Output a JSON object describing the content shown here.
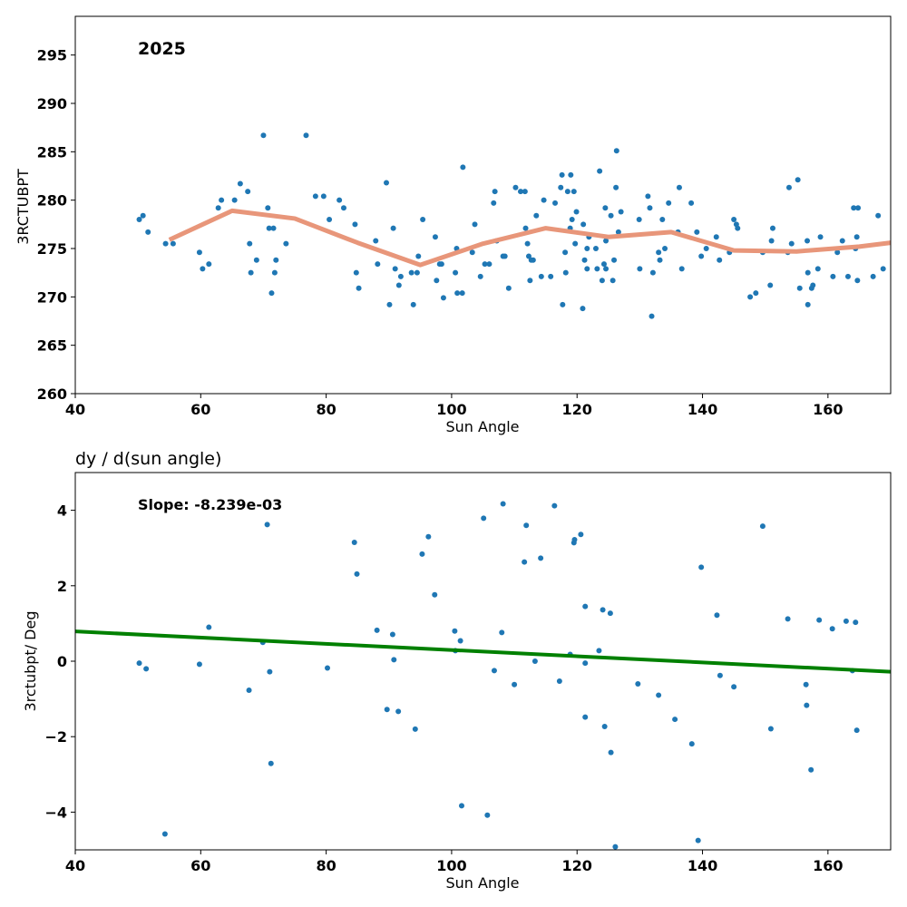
{
  "chart_data": [
    {
      "type": "scatter",
      "annotation": "2025",
      "xlabel": "Sun Angle",
      "ylabel": "3RCTUBPT",
      "xlim": [
        40,
        170
      ],
      "ylim": [
        260,
        299
      ],
      "xticks": [
        40,
        60,
        80,
        100,
        120,
        140,
        160
      ],
      "yticks": [
        260,
        265,
        270,
        275,
        280,
        285,
        290,
        295
      ],
      "grid": false,
      "series": [
        {
          "kind": "scatter",
          "color": "#1f77b4",
          "points": [
            [
              50.2,
              278.0
            ],
            [
              50.8,
              278.4
            ],
            [
              51.6,
              276.7
            ],
            [
              54.4,
              275.5
            ],
            [
              55.6,
              275.5
            ],
            [
              59.8,
              274.6
            ],
            [
              60.3,
              272.9
            ],
            [
              61.3,
              273.4
            ],
            [
              62.8,
              279.2
            ],
            [
              63.3,
              280.0
            ],
            [
              65.4,
              280.0
            ],
            [
              66.3,
              281.7
            ],
            [
              67.5,
              280.9
            ],
            [
              67.8,
              275.5
            ],
            [
              68.0,
              272.5
            ],
            [
              68.9,
              273.8
            ],
            [
              70.0,
              286.7
            ],
            [
              70.7,
              279.2
            ],
            [
              70.9,
              277.1
            ],
            [
              71.3,
              270.4
            ],
            [
              71.6,
              277.1
            ],
            [
              71.8,
              272.5
            ],
            [
              72.0,
              273.8
            ],
            [
              73.6,
              275.5
            ],
            [
              76.8,
              286.7
            ],
            [
              78.3,
              280.4
            ],
            [
              79.6,
              280.4
            ],
            [
              80.5,
              278.0
            ],
            [
              82.1,
              280.0
            ],
            [
              82.8,
              279.2
            ],
            [
              84.6,
              277.5
            ],
            [
              84.8,
              272.5
            ],
            [
              85.2,
              270.9
            ],
            [
              87.9,
              275.8
            ],
            [
              88.2,
              273.4
            ],
            [
              89.6,
              281.8
            ],
            [
              90.1,
              269.2
            ],
            [
              90.7,
              277.1
            ],
            [
              91.0,
              272.9
            ],
            [
              91.6,
              271.2
            ],
            [
              91.9,
              272.1
            ],
            [
              93.6,
              272.5
            ],
            [
              93.9,
              269.2
            ],
            [
              94.5,
              272.5
            ],
            [
              94.7,
              274.2
            ],
            [
              95.4,
              278.0
            ],
            [
              97.4,
              276.2
            ],
            [
              97.6,
              271.7
            ],
            [
              98.1,
              273.4
            ],
            [
              98.4,
              273.4
            ],
            [
              98.7,
              269.9
            ],
            [
              100.6,
              272.5
            ],
            [
              100.9,
              270.4
            ],
            [
              100.8,
              275.0
            ],
            [
              101.7,
              270.4
            ],
            [
              101.8,
              283.4
            ],
            [
              103.3,
              274.6
            ],
            [
              103.7,
              277.5
            ],
            [
              104.6,
              272.1
            ],
            [
              105.3,
              273.4
            ],
            [
              106.0,
              273.4
            ],
            [
              106.7,
              279.7
            ],
            [
              106.9,
              280.9
            ],
            [
              107.2,
              275.8
            ],
            [
              108.2,
              274.2
            ],
            [
              108.5,
              274.2
            ],
            [
              109.1,
              270.9
            ],
            [
              110.2,
              281.3
            ],
            [
              111.0,
              280.9
            ],
            [
              111.7,
              280.9
            ],
            [
              111.8,
              277.1
            ],
            [
              112.1,
              275.5
            ],
            [
              112.3,
              274.2
            ],
            [
              112.5,
              271.7
            ],
            [
              112.7,
              273.8
            ],
            [
              113.0,
              273.8
            ],
            [
              113.5,
              278.4
            ],
            [
              114.3,
              272.1
            ],
            [
              114.7,
              280.0
            ],
            [
              115.8,
              272.1
            ],
            [
              116.5,
              279.7
            ],
            [
              117.4,
              281.3
            ],
            [
              117.6,
              282.6
            ],
            [
              117.7,
              269.2
            ],
            [
              118.1,
              274.6
            ],
            [
              118.2,
              272.5
            ],
            [
              118.5,
              280.9
            ],
            [
              118.9,
              277.1
            ],
            [
              119.0,
              282.6
            ],
            [
              119.2,
              278.0
            ],
            [
              119.5,
              280.9
            ],
            [
              119.7,
              275.5
            ],
            [
              119.9,
              278.8
            ],
            [
              121.0,
              277.5
            ],
            [
              121.2,
              273.8
            ],
            [
              120.9,
              268.8
            ],
            [
              121.6,
              272.9
            ],
            [
              121.6,
              275.0
            ],
            [
              121.9,
              276.2
            ],
            [
              123.0,
              275.0
            ],
            [
              123.2,
              272.9
            ],
            [
              123.6,
              283.0
            ],
            [
              124.0,
              271.7
            ],
            [
              124.3,
              273.4
            ],
            [
              124.5,
              279.2
            ],
            [
              124.6,
              272.9
            ],
            [
              124.6,
              275.8
            ],
            [
              125.4,
              278.4
            ],
            [
              125.7,
              271.7
            ],
            [
              125.9,
              273.8
            ],
            [
              126.3,
              285.1
            ],
            [
              126.2,
              281.3
            ],
            [
              126.6,
              276.7
            ],
            [
              127.0,
              278.8
            ],
            [
              129.9,
              278.0
            ],
            [
              130.0,
              272.9
            ],
            [
              131.3,
              280.4
            ],
            [
              131.6,
              279.2
            ],
            [
              131.9,
              268.0
            ],
            [
              132.1,
              272.5
            ],
            [
              133.0,
              274.6
            ],
            [
              133.2,
              273.8
            ],
            [
              133.6,
              278.0
            ],
            [
              134.0,
              275.0
            ],
            [
              134.6,
              279.7
            ],
            [
              136.1,
              276.7
            ],
            [
              136.3,
              281.3
            ],
            [
              136.7,
              272.9
            ],
            [
              138.2,
              279.7
            ],
            [
              139.1,
              276.7
            ],
            [
              139.8,
              274.2
            ],
            [
              140.6,
              275.0
            ],
            [
              142.2,
              276.2
            ],
            [
              142.7,
              273.8
            ],
            [
              144.3,
              274.6
            ],
            [
              145.0,
              278.0
            ],
            [
              145.4,
              277.5
            ],
            [
              145.6,
              277.1
            ],
            [
              147.6,
              270.0
            ],
            [
              148.5,
              270.4
            ],
            [
              149.6,
              274.6
            ],
            [
              150.8,
              271.2
            ],
            [
              151.0,
              275.8
            ],
            [
              151.2,
              277.1
            ],
            [
              153.6,
              274.6
            ],
            [
              153.8,
              281.3
            ],
            [
              154.2,
              275.5
            ],
            [
              155.2,
              282.1
            ],
            [
              155.5,
              270.9
            ],
            [
              156.7,
              275.8
            ],
            [
              156.8,
              272.5
            ],
            [
              156.8,
              269.2
            ],
            [
              157.4,
              270.9
            ],
            [
              157.6,
              271.2
            ],
            [
              158.4,
              272.9
            ],
            [
              158.8,
              276.2
            ],
            [
              160.8,
              272.1
            ],
            [
              161.5,
              274.6
            ],
            [
              162.3,
              275.8
            ],
            [
              163.2,
              272.1
            ],
            [
              164.1,
              279.2
            ],
            [
              164.4,
              275.0
            ],
            [
              164.6,
              276.2
            ],
            [
              164.8,
              279.2
            ],
            [
              164.7,
              271.7
            ],
            [
              167.2,
              272.1
            ],
            [
              168.0,
              278.4
            ],
            [
              168.8,
              272.9
            ]
          ]
        },
        {
          "kind": "line",
          "color": "#e8967a",
          "points": [
            [
              55,
              275.9
            ],
            [
              65,
              278.9
            ],
            [
              75,
              278.1
            ],
            [
              85,
              275.6
            ],
            [
              95,
              273.3
            ],
            [
              105,
              275.5
            ],
            [
              115,
              277.1
            ],
            [
              125,
              276.2
            ],
            [
              135,
              276.7
            ],
            [
              145,
              274.8
            ],
            [
              155,
              274.7
            ],
            [
              165,
              275.2
            ],
            [
              170,
              275.6
            ]
          ]
        }
      ]
    },
    {
      "type": "scatter",
      "title": "dy / d(sun angle)",
      "annotation": "Slope: -8.239e-03",
      "xlabel": "Sun Angle",
      "ylabel": "3rctubpt/ Deg",
      "xlim": [
        40,
        170
      ],
      "ylim": [
        -5,
        5
      ],
      "xticks": [
        40,
        60,
        80,
        100,
        120,
        140,
        160
      ],
      "yticks": [
        -4,
        -2,
        0,
        2,
        4
      ],
      "grid": false,
      "series": [
        {
          "kind": "scatter",
          "color": "#1f77b4",
          "points": [
            [
              50.2,
              -0.05
            ],
            [
              51.3,
              -0.2
            ],
            [
              54.3,
              -4.58
            ],
            [
              59.8,
              -0.08
            ],
            [
              61.3,
              0.9
            ],
            [
              67.7,
              -0.77
            ],
            [
              69.9,
              0.5
            ],
            [
              70.6,
              3.62
            ],
            [
              71.0,
              -0.28
            ],
            [
              71.2,
              -2.71
            ],
            [
              80.2,
              -0.18
            ],
            [
              84.5,
              3.15
            ],
            [
              84.9,
              2.31
            ],
            [
              88.1,
              0.82
            ],
            [
              89.7,
              -1.28
            ],
            [
              90.6,
              0.71
            ],
            [
              90.8,
              0.04
            ],
            [
              91.5,
              -1.33
            ],
            [
              94.2,
              -1.8
            ],
            [
              95.3,
              2.84
            ],
            [
              96.3,
              3.3
            ],
            [
              97.3,
              1.76
            ],
            [
              100.5,
              0.8
            ],
            [
              100.6,
              0.28
            ],
            [
              101.4,
              0.54
            ],
            [
              101.6,
              -3.83
            ],
            [
              105.1,
              3.79
            ],
            [
              105.7,
              -4.08
            ],
            [
              106.8,
              -0.25
            ],
            [
              108.0,
              0.76
            ],
            [
              108.2,
              4.17
            ],
            [
              110.0,
              -0.62
            ],
            [
              111.6,
              2.63
            ],
            [
              111.9,
              3.6
            ],
            [
              113.3,
              0.0
            ],
            [
              114.2,
              2.73
            ],
            [
              116.4,
              4.12
            ],
            [
              117.2,
              -0.53
            ],
            [
              118.9,
              0.18
            ],
            [
              119.5,
              3.14
            ],
            [
              119.6,
              3.22
            ],
            [
              120.6,
              3.36
            ],
            [
              121.3,
              1.45
            ],
            [
              121.3,
              -1.48
            ],
            [
              121.3,
              -0.05
            ],
            [
              123.5,
              0.28
            ],
            [
              124.1,
              1.36
            ],
            [
              124.4,
              -1.73
            ],
            [
              125.3,
              1.27
            ],
            [
              125.4,
              -2.42
            ],
            [
              126.1,
              -4.92
            ],
            [
              129.7,
              -0.6
            ],
            [
              133.0,
              -0.9
            ],
            [
              135.6,
              -1.54
            ],
            [
              138.3,
              -2.19
            ],
            [
              139.3,
              -4.75
            ],
            [
              139.8,
              2.49
            ],
            [
              142.3,
              1.22
            ],
            [
              142.8,
              -0.38
            ],
            [
              145.0,
              -0.68
            ],
            [
              149.6,
              3.58
            ],
            [
              150.9,
              -1.79
            ],
            [
              153.6,
              1.12
            ],
            [
              156.5,
              -0.62
            ],
            [
              156.6,
              -1.17
            ],
            [
              157.3,
              -2.88
            ],
            [
              158.6,
              1.09
            ],
            [
              160.7,
              0.86
            ],
            [
              162.9,
              1.06
            ],
            [
              163.9,
              -0.25
            ],
            [
              164.4,
              1.03
            ],
            [
              164.6,
              -1.83
            ]
          ]
        },
        {
          "kind": "line",
          "color": "#008000",
          "points": [
            [
              40,
              0.79
            ],
            [
              170,
              -0.28
            ]
          ]
        }
      ]
    }
  ]
}
